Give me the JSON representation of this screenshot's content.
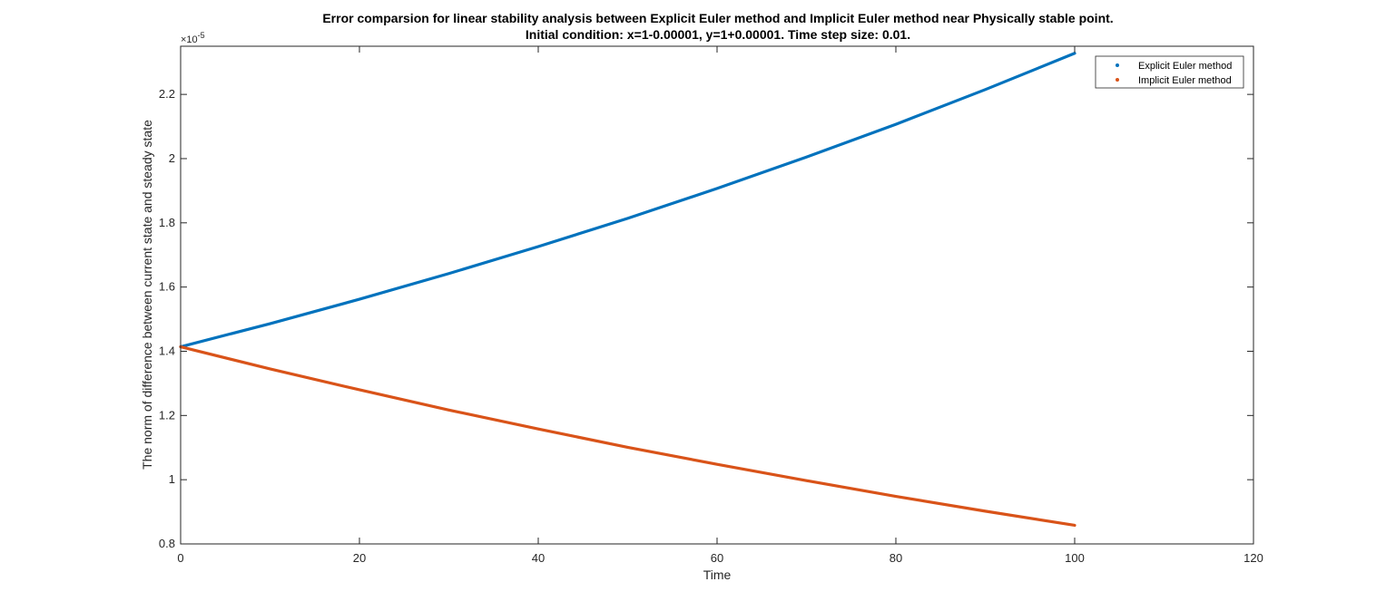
{
  "chart_data": {
    "type": "line",
    "title": [
      "Error comparsion for linear stability analysis between Explicit Euler method and Implicit Euler method near Physically stable point.",
      "Initial condition: x=1-0.00001, y=1+0.00001. Time step size: 0.01."
    ],
    "xlabel": "Time",
    "ylabel": "The norm of difference between current state and steady state",
    "xlim": [
      0,
      120
    ],
    "ylim": [
      0.8,
      2.35
    ],
    "y_multiplier": {
      "base": "×10",
      "exponent": "-5"
    },
    "xticks": [
      0,
      20,
      40,
      60,
      80,
      100,
      120
    ],
    "yticks": [
      0.8,
      1,
      1.2,
      1.4,
      1.6,
      1.8,
      2,
      2.2
    ],
    "xtick_labels": [
      "0",
      "20",
      "40",
      "60",
      "80",
      100,
      "120"
    ],
    "ytick_labels": [
      "0.8",
      "1",
      "1.2",
      "1.4",
      "1.6",
      "1.8",
      "2",
      "2.2"
    ],
    "legend_position": "top-right",
    "grid": false,
    "series": [
      {
        "name": "Explicit Euler method",
        "color": "#0072BD",
        "x": [
          0,
          10,
          20,
          30,
          40,
          50,
          60,
          70,
          80,
          90,
          100
        ],
        "values": [
          1.414,
          1.486,
          1.562,
          1.642,
          1.726,
          1.814,
          1.907,
          2.005,
          2.107,
          2.215,
          2.328
        ]
      },
      {
        "name": "Implicit Euler method",
        "color": "#D95319",
        "x": [
          0,
          10,
          20,
          30,
          40,
          50,
          60,
          70,
          80,
          90,
          100
        ],
        "values": [
          1.414,
          1.345,
          1.28,
          1.217,
          1.158,
          1.101,
          1.048,
          0.997,
          0.948,
          0.902,
          0.858
        ]
      }
    ]
  }
}
